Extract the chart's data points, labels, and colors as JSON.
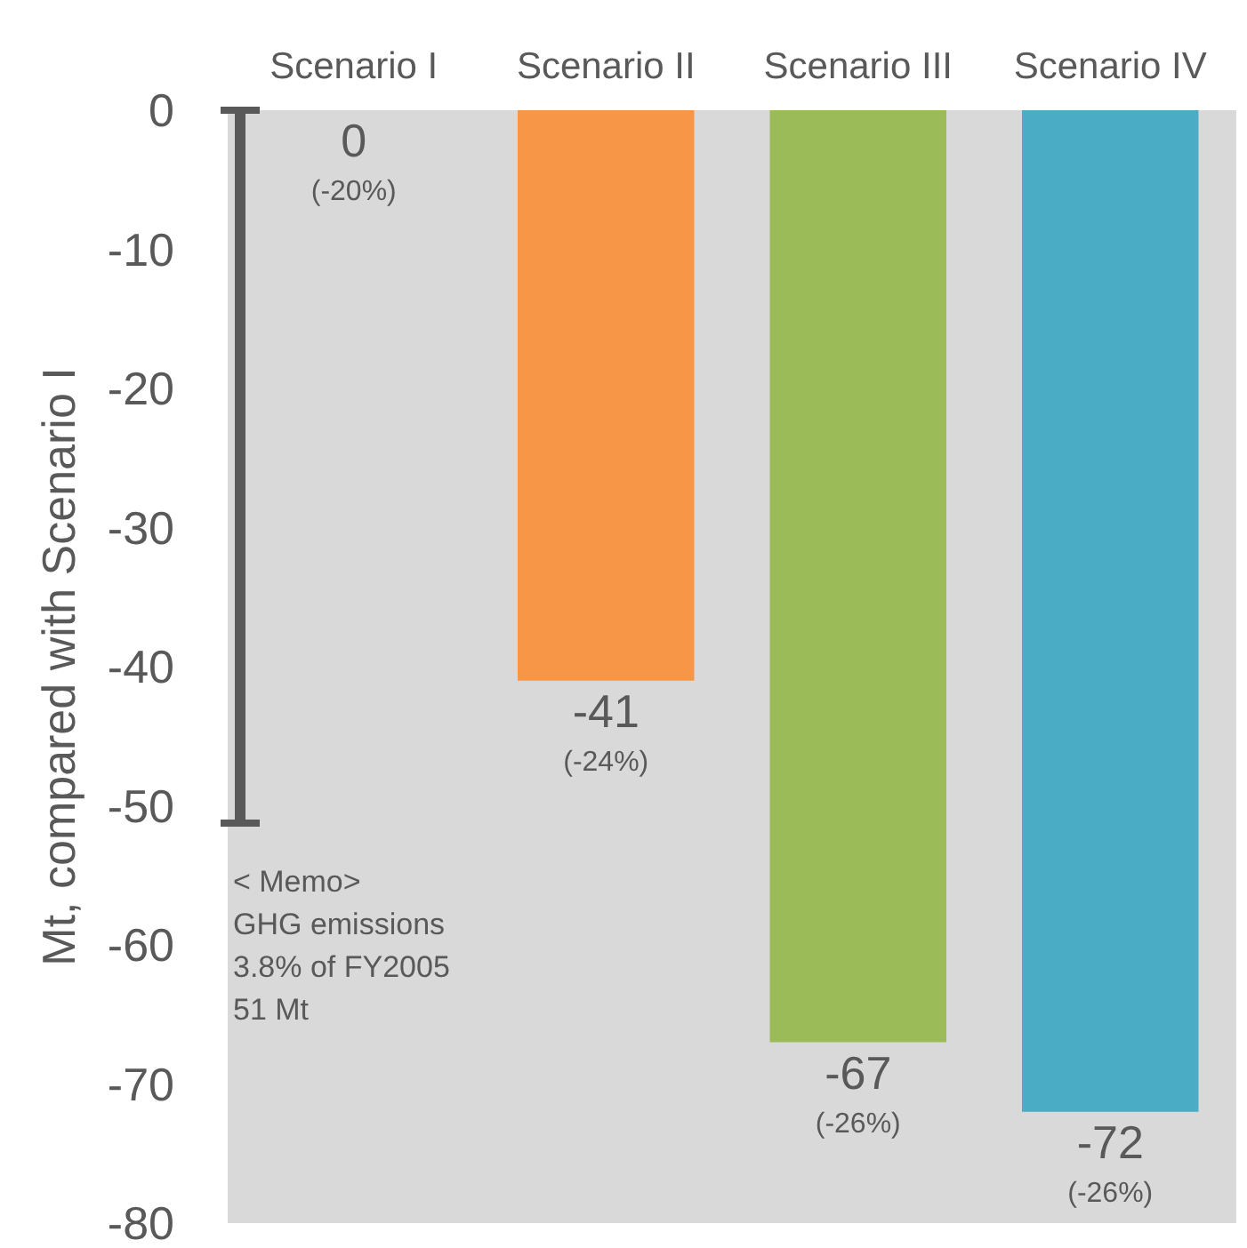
{
  "chart_data": {
    "type": "bar",
    "ylabel": "Mt, compared with Scenario I",
    "categories": [
      "Scenario I",
      "Scenario II",
      "Scenario III",
      "Scenario IV"
    ],
    "values": [
      0,
      -41,
      -67,
      -72
    ],
    "colors": [
      "#e07a6e",
      "#f79646",
      "#9bbb59",
      "#4bacc6"
    ],
    "value_labels": [
      "0\n(-20%)",
      "-41\n(-24%)",
      "-67\n(-26%)",
      "-72\n(-26%)"
    ],
    "ylim": [
      -80,
      0
    ],
    "yticks": [
      -80,
      -70,
      -60,
      -50,
      -40,
      -30,
      -20,
      -10,
      0
    ],
    "annotations": [
      "< Memo>\nGHG emissions\n3.8% of FY2005\n51 Mt"
    ],
    "grid": false
  }
}
